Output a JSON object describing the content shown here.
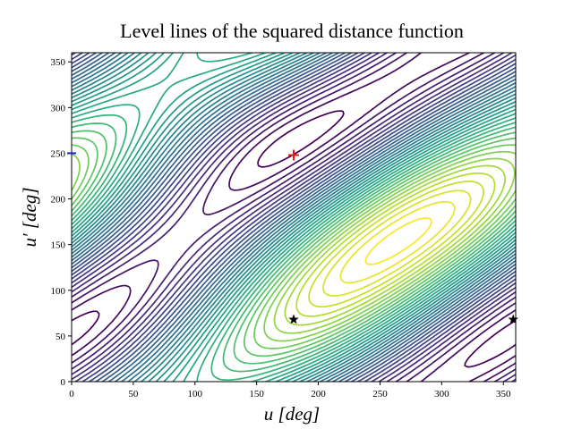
{
  "chart_data": {
    "type": "contour",
    "title": "Level lines of the squared distance function",
    "xlabel": "u [deg]",
    "ylabel": "u′ [deg]",
    "xlim": [
      0,
      360
    ],
    "ylim": [
      0,
      360
    ],
    "xticks": [
      0,
      50,
      100,
      150,
      200,
      250,
      300,
      350
    ],
    "yticks": [
      0,
      50,
      100,
      150,
      200,
      250,
      300,
      350
    ],
    "colormap": "viridis",
    "n_levels": 36,
    "points": [
      {
        "x": 180,
        "y": 248,
        "marker": "plus",
        "color": "#e41a1c"
      },
      {
        "x": 180,
        "y": 68,
        "marker": "star",
        "color": "#000000"
      },
      {
        "x": 358,
        "y": 68,
        "marker": "star",
        "color": "#000000"
      },
      {
        "x": 0,
        "y": 250,
        "marker": "hline",
        "color": "#1f1fbf"
      }
    ]
  }
}
